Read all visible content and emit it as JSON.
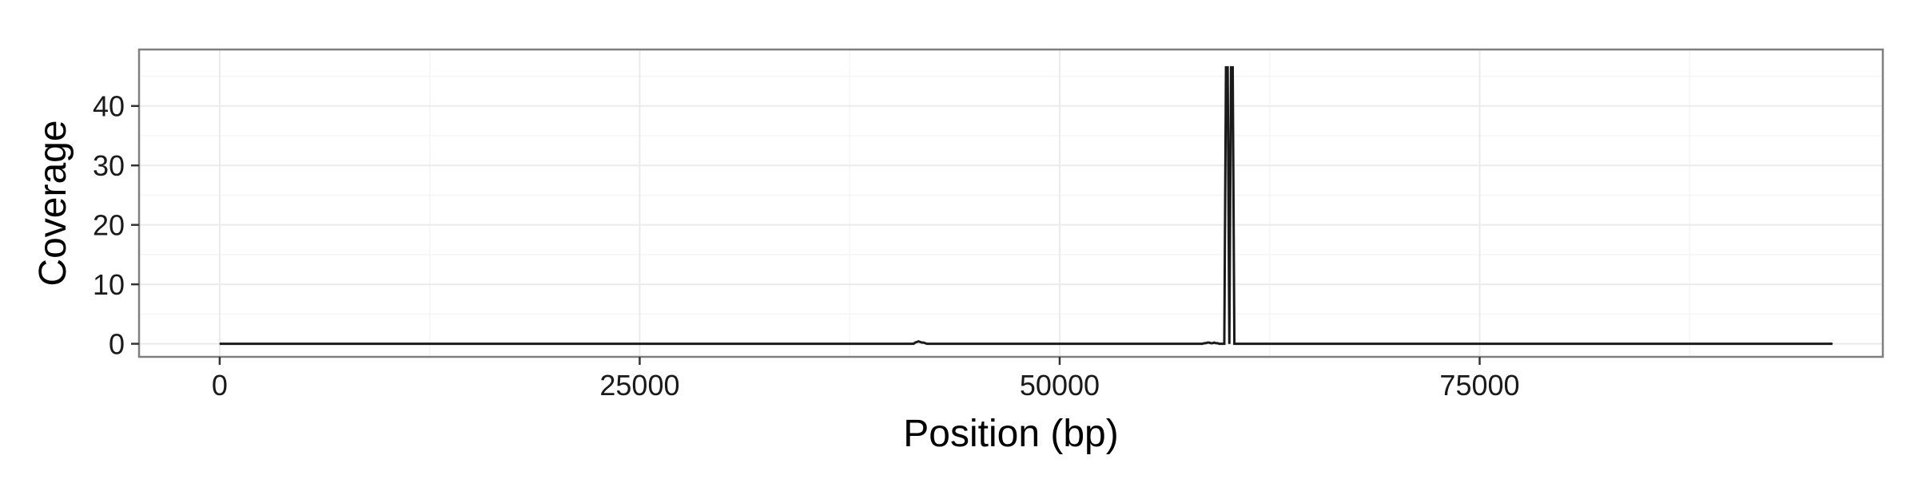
{
  "chart_data": {
    "type": "area",
    "xlabel": "Position (bp)",
    "ylabel": "Coverage",
    "xlim": [
      -4800,
      99000
    ],
    "ylim": [
      -2.2,
      49.5
    ],
    "x_ticks": [
      0,
      25000,
      50000,
      75000
    ],
    "x_tick_labels": [
      "0",
      "25000",
      "50000",
      "75000"
    ],
    "y_ticks": [
      0,
      10,
      20,
      30,
      40
    ],
    "y_tick_labels": [
      "0",
      "10",
      "20",
      "30",
      "40"
    ],
    "grid": true,
    "legend": "none",
    "series": [
      {
        "x": [
          0,
          41300,
          41400,
          41500,
          41600,
          41700,
          41800,
          41900,
          42000,
          42100,
          58500,
          58600,
          58700,
          58800,
          58900,
          59000,
          59100,
          59200,
          59300,
          59400,
          59500,
          59600,
          59800,
          59900,
          60000,
          60100,
          60200,
          60300,
          60400,
          96000
        ],
        "y": [
          0,
          0,
          0.2,
          0.3,
          0.4,
          0.3,
          0.2,
          0.2,
          0.1,
          0,
          0,
          0.1,
          0.1,
          0.2,
          0.2,
          0.1,
          0.1,
          0.2,
          0.1,
          0.1,
          0,
          0,
          0,
          46.5,
          46.5,
          0,
          46.5,
          46.5,
          0,
          0
        ]
      }
    ],
    "colors": {
      "line": "#1a1a1a",
      "panel_border": "#7f7f7f",
      "grid_major": "#ebebeb",
      "grid_minor": "#f5f5f5"
    }
  }
}
